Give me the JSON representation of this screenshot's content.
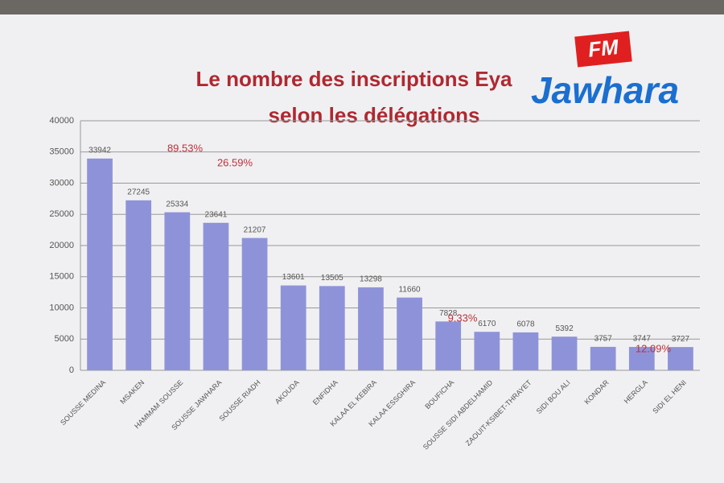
{
  "chart_data": {
    "type": "bar",
    "title_lines": [
      "Le nombre des inscriptions Eya",
      "selon les délégations"
    ],
    "categories": [
      "SOUSSE MEDINA",
      "MSAKEN",
      "HAMMAM SOUSSE",
      "SOUSSE JAWHARA",
      "SOUSSE RIADH",
      "AKOUDA",
      "ENFIDHA",
      "KALAA EL KEBIRA",
      "KALAA ESSGHIRA",
      "BOUFICHA",
      "SOUSSE SIDI ABDELHAMID",
      "ZAOUIT-KSIBET-THRAYET",
      "SIDI BOU ALI",
      "KONDAR",
      "HERGLA",
      "SIDI EL HENI"
    ],
    "values": [
      33942,
      27245,
      25334,
      23641,
      21207,
      13601,
      13505,
      13298,
      11660,
      7828,
      6170,
      6078,
      5392,
      3757,
      3747,
      3727
    ],
    "color": "#8e93d9",
    "ylim": [
      0,
      40000
    ],
    "yticks": [
      0,
      5000,
      10000,
      15000,
      20000,
      25000,
      30000,
      35000,
      40000
    ],
    "grid": true,
    "annotations": [
      "89.53%",
      "26.59%",
      "9.33%",
      "12.09%"
    ]
  },
  "logo": {
    "badge": "FM",
    "name": "Jawhara"
  }
}
